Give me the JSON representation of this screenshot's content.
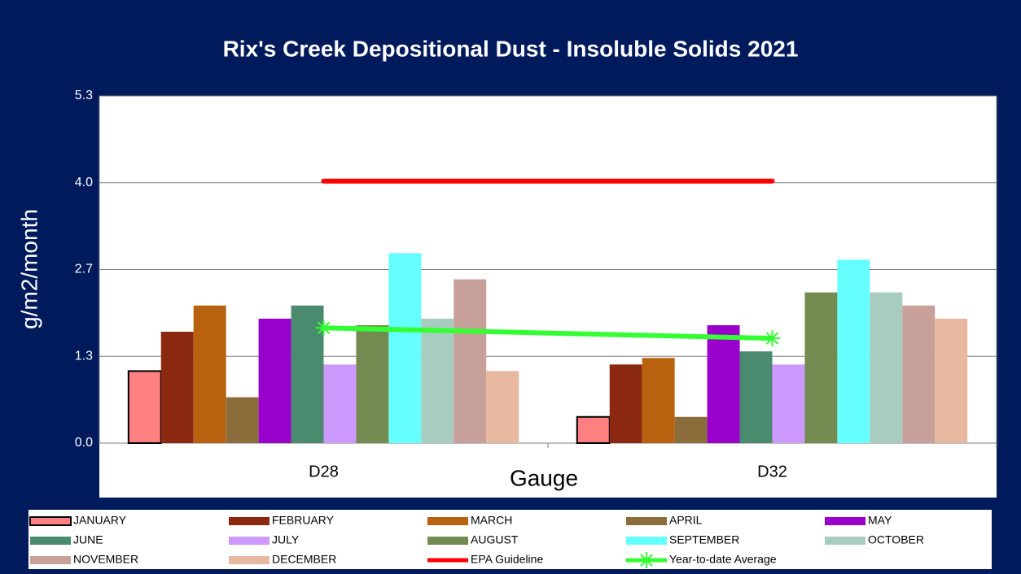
{
  "chart_data": {
    "type": "bar",
    "title": "Rix's Creek Depositional Dust - Insoluble Solids 2021",
    "x_label": "Gauge",
    "y_label": "g/m2/month",
    "categories": [
      "D28",
      "D32"
    ],
    "ylim": [
      0,
      5.3
    ],
    "yticks": [
      {
        "value": 0,
        "label": "0.0"
      },
      {
        "value": 1.325,
        "label": "1.3"
      },
      {
        "value": 2.65,
        "label": "2.7"
      },
      {
        "value": 3.975,
        "label": "4.0"
      },
      {
        "value": 5.3,
        "label": "5.3"
      }
    ],
    "grid": true,
    "legend": "bottom",
    "series": [
      {
        "name": "JANUARY",
        "color": "#ff8080",
        "values": [
          1.1,
          0.4
        ]
      },
      {
        "name": "FEBRUARY",
        "color": "#8b2810",
        "values": [
          1.7,
          1.2
        ]
      },
      {
        "name": "MARCH",
        "color": "#b8620f",
        "values": [
          2.1,
          1.3
        ]
      },
      {
        "name": "APRIL",
        "color": "#8b6d3c",
        "values": [
          0.7,
          0.4
        ]
      },
      {
        "name": "MAY",
        "color": "#9900cc",
        "values": [
          1.9,
          1.8
        ]
      },
      {
        "name": "JUNE",
        "color": "#4a8a6e",
        "values": [
          2.1,
          1.4
        ]
      },
      {
        "name": "JULY",
        "color": "#cc99ff",
        "values": [
          1.2,
          1.2
        ]
      },
      {
        "name": "AUGUST",
        "color": "#738a50",
        "values": [
          1.8,
          2.3
        ]
      },
      {
        "name": "SEPTEMBER",
        "color": "#66ffff",
        "values": [
          2.9,
          2.8
        ]
      },
      {
        "name": "OCTOBER",
        "color": "#a8ccc0",
        "values": [
          1.9,
          2.3
        ]
      },
      {
        "name": "NOVEMBER",
        "color": "#c8a09a",
        "values": [
          2.5,
          2.1
        ]
      },
      {
        "name": "DECEMBER",
        "color": "#e8b8a0",
        "values": [
          1.1,
          1.9
        ]
      },
      {
        "name": "EPA Guideline",
        "color": "#ff0000",
        "type": "line",
        "values": [
          4.0,
          4.0
        ]
      },
      {
        "name": "Year-to-date Average",
        "color": "#33ff33",
        "type": "line",
        "marker": "asterisk",
        "values": [
          1.76,
          1.6
        ]
      }
    ]
  }
}
